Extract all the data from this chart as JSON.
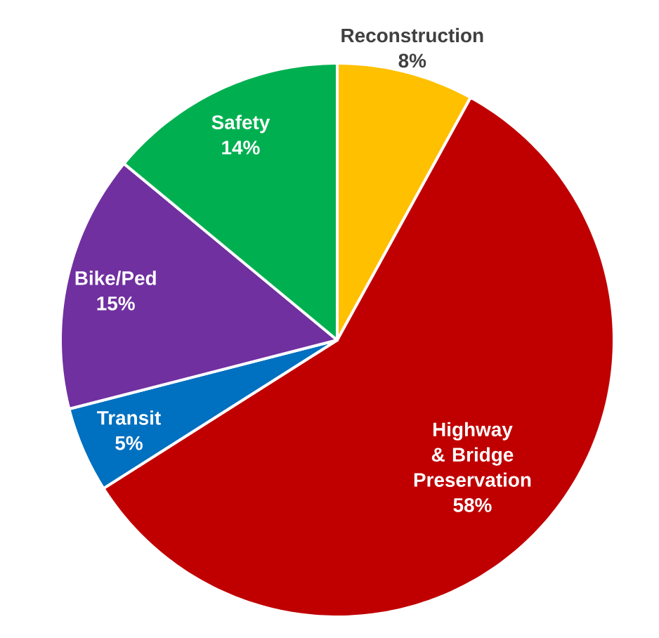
{
  "chart_data": {
    "type": "pie",
    "categories": [
      "Reconstruction",
      "Highway & Bridge Preservation",
      "Transit",
      "Bike/Ped",
      "Safety"
    ],
    "values": [
      8,
      58,
      5,
      15,
      14
    ],
    "colors": [
      "#ffc000",
      "#c00000",
      "#0070c0",
      "#7030a0",
      "#00b050"
    ],
    "value_labels": [
      "8%",
      "58%",
      "5%",
      "15%",
      "14%"
    ]
  }
}
